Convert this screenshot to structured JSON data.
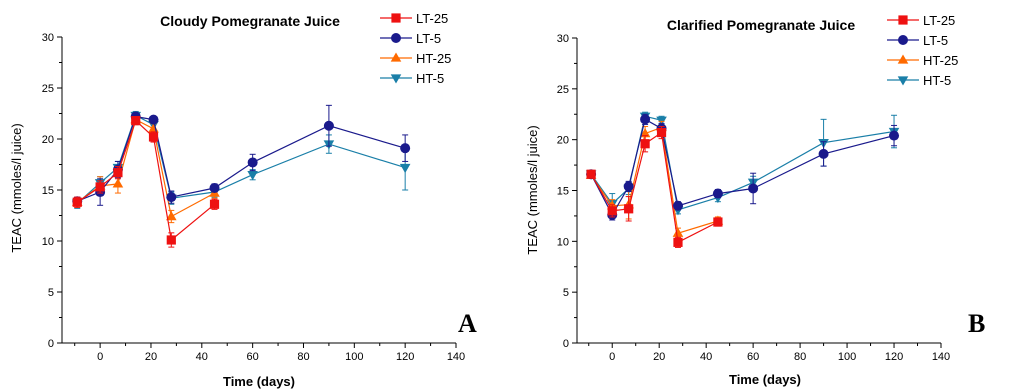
{
  "colors": {
    "LT-25": "#ee1111",
    "LT-5": "#1a1a8c",
    "HT-25": "#ff6a00",
    "HT-5": "#1a7fa8"
  },
  "chart_data": [
    {
      "type": "line",
      "title": "Cloudy Pomegranate Juice",
      "panel_label": "A",
      "xlabel": "Time (days)",
      "ylabel": "TEAC (mmoles/l juice)",
      "xlim": [
        -15,
        140
      ],
      "ylim": [
        0,
        30
      ],
      "xticks": [
        0,
        20,
        40,
        60,
        80,
        100,
        120,
        140
      ],
      "yticks": [
        0,
        5,
        10,
        15,
        20,
        25,
        30
      ],
      "legend_position": "top-right",
      "series": [
        {
          "name": "LT-25",
          "marker": "square",
          "x": [
            -9,
            0,
            7,
            14,
            21,
            28,
            45
          ],
          "y": [
            13.8,
            15.3,
            16.7,
            21.8,
            20.2,
            10.1,
            13.6
          ],
          "err": [
            0.5,
            0.6,
            0.6,
            0.4,
            0.5,
            0.7,
            0.5
          ]
        },
        {
          "name": "LT-5",
          "marker": "circle",
          "x": [
            -9,
            0,
            7,
            14,
            21,
            28,
            45,
            60,
            90,
            120
          ],
          "y": [
            13.9,
            14.8,
            17.0,
            22.2,
            21.9,
            14.3,
            15.2,
            17.7,
            21.3,
            19.1
          ],
          "err": [
            0.4,
            1.3,
            0.8,
            0.3,
            0.3,
            0.6,
            0.4,
            0.8,
            2.0,
            1.3
          ]
        },
        {
          "name": "HT-25",
          "marker": "triangle-up",
          "x": [
            -9,
            0,
            7,
            14,
            21,
            28,
            45
          ],
          "y": [
            13.8,
            15.4,
            15.6,
            21.9,
            21.0,
            12.4,
            14.7
          ],
          "err": [
            0.5,
            0.9,
            0.9,
            0.4,
            0.5,
            0.6,
            0.5
          ]
        },
        {
          "name": "HT-5",
          "marker": "triangle-down",
          "x": [
            -9,
            0,
            7,
            14,
            21,
            28,
            45,
            60,
            90,
            120
          ],
          "y": [
            13.7,
            15.7,
            17.2,
            22.3,
            21.4,
            14.2,
            14.8,
            16.5,
            19.5,
            17.2
          ],
          "err": [
            0.5,
            0.6,
            0.6,
            0.4,
            0.6,
            0.6,
            0.5,
            0.5,
            0.9,
            2.2
          ]
        }
      ]
    },
    {
      "type": "line",
      "title": "Clarified Pomegranate Juice",
      "panel_label": "B",
      "xlabel": "Time (days)",
      "ylabel": "TEAC (mmoles/l juice)",
      "xlim": [
        -15,
        140
      ],
      "ylim": [
        0,
        30
      ],
      "xticks": [
        0,
        20,
        40,
        60,
        80,
        100,
        120,
        140
      ],
      "yticks": [
        0,
        5,
        10,
        15,
        20,
        25,
        30
      ],
      "legend_position": "top-right",
      "series": [
        {
          "name": "LT-25",
          "marker": "square",
          "x": [
            -9,
            0,
            7,
            14,
            21,
            28,
            45
          ],
          "y": [
            16.6,
            13.0,
            13.2,
            19.6,
            20.7,
            9.9,
            11.9
          ],
          "err": [
            0.3,
            0.6,
            1.2,
            0.8,
            0.6,
            0.5,
            0.4
          ]
        },
        {
          "name": "LT-5",
          "marker": "circle",
          "x": [
            -9,
            0,
            7,
            14,
            21,
            28,
            45,
            60,
            90,
            120
          ],
          "y": [
            16.6,
            12.6,
            15.4,
            22.0,
            21.1,
            13.5,
            14.7,
            15.2,
            18.6,
            20.4
          ],
          "err": [
            0.3,
            0.5,
            0.5,
            0.5,
            0.5,
            0.4,
            0.4,
            1.5,
            1.2,
            1.0
          ]
        },
        {
          "name": "HT-25",
          "marker": "triangle-up",
          "x": [
            -9,
            0,
            7,
            14,
            21,
            28,
            45
          ],
          "y": [
            16.5,
            13.5,
            13.6,
            20.6,
            21.2,
            10.8,
            12.0
          ],
          "err": [
            0.3,
            0.6,
            1.4,
            0.7,
            0.6,
            0.5,
            0.4
          ]
        },
        {
          "name": "HT-5",
          "marker": "triangle-down",
          "x": [
            -9,
            0,
            7,
            14,
            21,
            28,
            45,
            60,
            90,
            120
          ],
          "y": [
            16.6,
            13.7,
            15.2,
            22.3,
            21.9,
            13.1,
            14.3,
            15.8,
            19.7,
            20.8
          ],
          "err": [
            0.3,
            1.0,
            0.6,
            0.4,
            0.4,
            0.4,
            0.4,
            0.6,
            2.3,
            1.6
          ]
        }
      ]
    }
  ]
}
